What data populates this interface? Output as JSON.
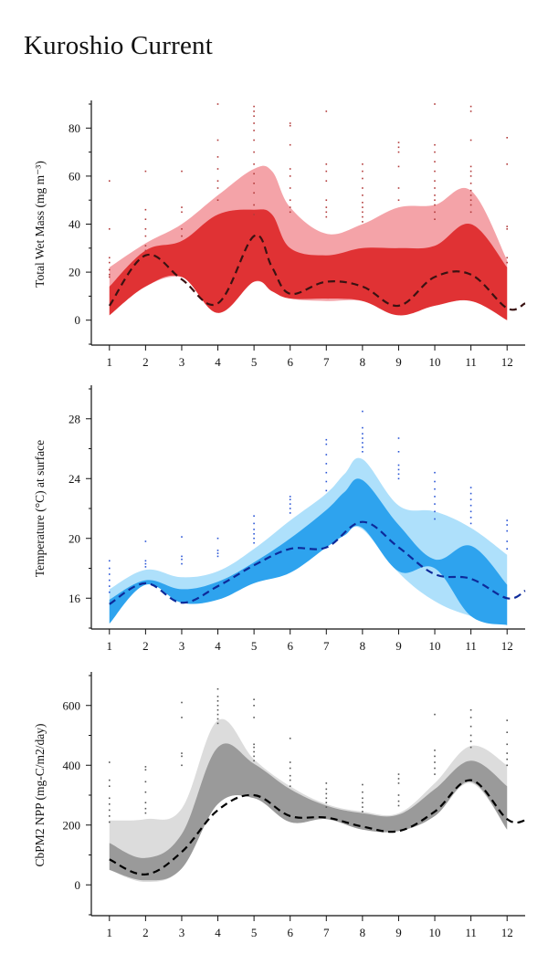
{
  "page_title": "Kuroshio Current",
  "chart_data": [
    {
      "type": "area",
      "ylabel": "Total Wet Mass (mg m⁻³)",
      "x": [
        1,
        2,
        3,
        4,
        5,
        6,
        7,
        8,
        9,
        10,
        11,
        12
      ],
      "xlim": [
        0.5,
        12.5
      ],
      "ylim": [
        -10,
        90
      ],
      "yticks": [
        0,
        20,
        40,
        60,
        80
      ],
      "colors": {
        "outer": "#f4a3a8",
        "inner": "#e03234",
        "median": "#3a1212",
        "points": "#b23a3a"
      },
      "outer_band": {
        "x": [
          1,
          2,
          3,
          4,
          5,
          5.5,
          6,
          7,
          8,
          9,
          10,
          11,
          12
        ],
        "upper": [
          22,
          32,
          40,
          52,
          63,
          62,
          47,
          36,
          40,
          47,
          48,
          54,
          25
        ],
        "lower": [
          2,
          14,
          18,
          9,
          16,
          13,
          9,
          8,
          8,
          3,
          6,
          8,
          0
        ]
      },
      "inner_band": {
        "x": [
          1,
          2,
          3,
          4,
          5,
          5.5,
          6,
          7,
          8,
          9,
          10,
          11,
          12
        ],
        "upper": [
          14,
          29,
          33,
          44,
          46,
          44,
          30,
          27,
          30,
          30,
          31,
          40,
          22
        ],
        "lower": [
          2,
          14,
          18,
          3,
          16,
          12,
          9,
          9,
          8,
          2,
          6,
          8,
          0
        ]
      },
      "median": {
        "x": [
          1,
          2,
          3,
          4,
          5,
          5.5,
          6,
          7,
          8,
          9,
          10,
          11,
          12,
          12.5
        ],
        "y": [
          6,
          27,
          17,
          7,
          35,
          22,
          11,
          16,
          14,
          6,
          18,
          19,
          5,
          7
        ]
      },
      "observations": [
        {
          "x": 1,
          "y": [
            58,
            38,
            26,
            24,
            21,
            19,
            18
          ]
        },
        {
          "x": 2,
          "y": [
            62,
            46,
            42,
            38,
            35,
            31,
            29
          ]
        },
        {
          "x": 3,
          "y": [
            62,
            47,
            45,
            38,
            35
          ]
        },
        {
          "x": 4,
          "y": [
            90,
            75,
            68,
            63,
            58,
            55,
            50
          ]
        },
        {
          "x": 5,
          "y": [
            89,
            87,
            85,
            82,
            79,
            75,
            70,
            65,
            61,
            57,
            53,
            48,
            44
          ]
        },
        {
          "x": 6,
          "y": [
            82,
            81,
            73,
            63,
            60,
            55,
            50,
            47,
            45
          ]
        },
        {
          "x": 7,
          "y": [
            87,
            65,
            62,
            58,
            50,
            47,
            45,
            43
          ]
        },
        {
          "x": 8,
          "y": [
            65,
            62,
            59,
            55,
            52,
            49,
            47,
            45,
            43,
            41
          ]
        },
        {
          "x": 9,
          "y": [
            74,
            72,
            70,
            64,
            55,
            50
          ]
        },
        {
          "x": 10,
          "y": [
            90,
            73,
            70,
            66,
            62,
            58,
            55,
            52,
            50,
            48,
            45,
            42
          ]
        },
        {
          "x": 11,
          "y": [
            89,
            87,
            75,
            64,
            62,
            60,
            57,
            54,
            52,
            50,
            48,
            45
          ]
        },
        {
          "x": 12,
          "y": [
            76,
            65,
            39,
            38,
            26,
            24
          ]
        }
      ]
    },
    {
      "type": "area",
      "ylabel": "Temperature (°C) at surface",
      "x": [
        1,
        2,
        3,
        4,
        5,
        6,
        7,
        8,
        9,
        10,
        11,
        12
      ],
      "xlim": [
        0.5,
        12.5
      ],
      "ylim": [
        14,
        30
      ],
      "yticks": [
        16,
        20,
        24,
        28
      ],
      "colors": {
        "outer": "#aee0fb",
        "inner": "#2ea3ee",
        "median": "#0d2a9a",
        "points": "#2a55d6"
      },
      "outer_band": {
        "x": [
          1,
          2,
          3,
          4,
          5,
          6,
          7,
          7.5,
          8,
          9,
          10,
          11,
          12
        ],
        "upper": [
          16.6,
          17.9,
          17.4,
          17.8,
          19.3,
          21.2,
          23.0,
          24.3,
          25.3,
          22.2,
          21.8,
          20.7,
          18.9
        ],
        "lower": [
          14.3,
          16.9,
          15.7,
          15.9,
          17.1,
          18.0,
          19.5,
          20.3,
          20.6,
          17.7,
          15.8,
          14.8,
          14.2
        ]
      },
      "inner_band": {
        "x": [
          1,
          2,
          3,
          4,
          5,
          6,
          7,
          7.5,
          8,
          9,
          10,
          11,
          12
        ],
        "upper": [
          15.9,
          17.2,
          16.6,
          17.1,
          18.4,
          20.0,
          21.9,
          23.1,
          23.9,
          20.9,
          18.6,
          19.5,
          16.9
        ],
        "lower": [
          14.3,
          16.9,
          15.7,
          15.9,
          17.0,
          17.7,
          19.4,
          20.2,
          20.7,
          17.8,
          18.0,
          14.8,
          14.2
        ]
      },
      "median": {
        "x": [
          1,
          2,
          3,
          4,
          5,
          6,
          7,
          8,
          9,
          10,
          11,
          12,
          12.5
        ],
        "y": [
          15.6,
          17.0,
          15.7,
          16.8,
          18.2,
          19.3,
          19.4,
          21.1,
          19.4,
          17.6,
          17.3,
          16.0,
          16.5
        ]
      },
      "observations": [
        {
          "x": 1,
          "y": [
            18.5,
            18.0,
            17.6,
            17.2,
            16.8,
            16.4
          ]
        },
        {
          "x": 2,
          "y": [
            19.8,
            18.5,
            18.3,
            18.1
          ]
        },
        {
          "x": 3,
          "y": [
            20.1,
            18.8,
            18.6,
            18.3
          ]
        },
        {
          "x": 4,
          "y": [
            20.0,
            19.2,
            19.0,
            18.8
          ]
        },
        {
          "x": 5,
          "y": [
            21.5,
            21.0,
            20.6,
            20.3,
            20.0,
            19.7
          ]
        },
        {
          "x": 6,
          "y": [
            22.8,
            22.6,
            22.3,
            22.0,
            21.7
          ]
        },
        {
          "x": 7,
          "y": [
            26.6,
            26.3,
            25.6,
            25.0,
            24.4,
            23.8,
            23.2
          ]
        },
        {
          "x": 8,
          "y": [
            28.5,
            27.4,
            27.0,
            26.7,
            26.4,
            26.1,
            25.8
          ]
        },
        {
          "x": 9,
          "y": [
            26.7,
            25.8,
            24.9,
            24.6,
            24.3,
            24.0
          ]
        },
        {
          "x": 10,
          "y": [
            24.4,
            23.8,
            23.3,
            22.8,
            22.3,
            21.8,
            21.3
          ]
        },
        {
          "x": 11,
          "y": [
            23.4,
            23.0,
            22.6,
            22.2,
            21.8,
            21.4,
            21.0
          ]
        },
        {
          "x": 12,
          "y": [
            21.2,
            20.9,
            20.5,
            19.8,
            19.3
          ]
        }
      ]
    },
    {
      "type": "area",
      "ylabel": "CbPM2 NPP (mg-C/m2/day)",
      "x": [
        1,
        2,
        3,
        4,
        5,
        6,
        7,
        8,
        9,
        10,
        11,
        12
      ],
      "xlim": [
        0.5,
        12.5
      ],
      "ylim": [
        -100,
        700
      ],
      "yticks": [
        0,
        200,
        400,
        600
      ],
      "colors": {
        "outer": "#dcdcdc",
        "inner": "#9a9a9a",
        "median": "#000000",
        "points": "#555555"
      },
      "outer_band": {
        "x": [
          1,
          2,
          3,
          4,
          5,
          6,
          7,
          8,
          9,
          10,
          11,
          12
        ],
        "upper": [
          215,
          220,
          255,
          550,
          420,
          330,
          270,
          245,
          240,
          340,
          465,
          400
        ],
        "lower": [
          50,
          10,
          55,
          270,
          290,
          210,
          220,
          185,
          180,
          230,
          340,
          185
        ]
      },
      "inner_band": {
        "x": [
          1,
          2,
          3,
          4,
          5,
          6,
          7,
          8,
          9,
          10,
          11,
          12
        ],
        "upper": [
          140,
          90,
          170,
          460,
          405,
          320,
          265,
          240,
          235,
          320,
          415,
          330
        ],
        "lower": [
          50,
          15,
          55,
          270,
          290,
          210,
          220,
          185,
          180,
          230,
          345,
          185
        ]
      },
      "median": {
        "x": [
          1,
          2,
          3,
          4,
          5,
          6,
          7,
          8,
          9,
          10,
          11,
          12,
          12.5
        ],
        "y": [
          85,
          35,
          110,
          250,
          300,
          230,
          225,
          195,
          180,
          245,
          350,
          220,
          215
        ]
      },
      "observations": [
        {
          "x": 1,
          "y": [
            410,
            350,
            330,
            290,
            270,
            250,
            230,
            210
          ]
        },
        {
          "x": 2,
          "y": [
            395,
            385,
            345,
            310,
            275,
            255,
            240
          ]
        },
        {
          "x": 3,
          "y": [
            610,
            560,
            440,
            430,
            400
          ]
        },
        {
          "x": 4,
          "y": [
            655,
            630,
            615,
            600,
            585,
            570,
            555,
            540
          ]
        },
        {
          "x": 5,
          "y": [
            620,
            600,
            560,
            470,
            460,
            445,
            430,
            415
          ]
        },
        {
          "x": 6,
          "y": [
            490,
            410,
            390,
            365,
            350,
            330
          ]
        },
        {
          "x": 7,
          "y": [
            340,
            320,
            305,
            290,
            275,
            260
          ]
        },
        {
          "x": 8,
          "y": [
            335,
            310,
            290,
            275,
            260,
            245
          ]
        },
        {
          "x": 9,
          "y": [
            370,
            355,
            340,
            300,
            280,
            265
          ]
        },
        {
          "x": 10,
          "y": [
            570,
            450,
            430,
            410,
            390,
            370
          ]
        },
        {
          "x": 11,
          "y": [
            585,
            560,
            530,
            500,
            480,
            460
          ]
        },
        {
          "x": 12,
          "y": [
            550,
            510,
            470,
            440,
            420,
            400
          ]
        }
      ]
    }
  ]
}
